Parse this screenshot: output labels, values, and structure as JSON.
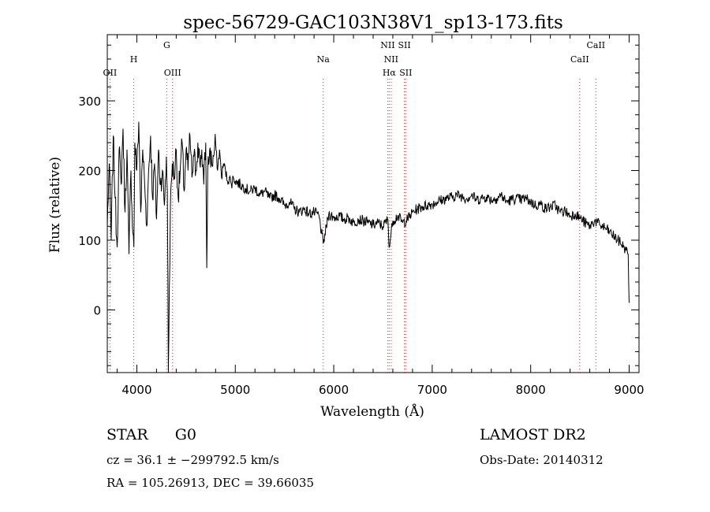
{
  "chart_data": {
    "type": "line",
    "title": "spec-56729-GAC103N38V1_sp13-173.fits",
    "xlabel": "Wavelength (Å)",
    "ylabel": "Flux (relative)",
    "xlim": [
      3700,
      9100
    ],
    "ylim": [
      -90,
      395
    ],
    "xticks": [
      4000,
      5000,
      6000,
      7000,
      8000,
      9000
    ],
    "yticks": [
      0,
      100,
      200,
      300
    ],
    "grid": false,
    "series": [
      {
        "x": [
          3700,
          3720,
          3740,
          3760,
          3780,
          3800,
          3820,
          3840,
          3860,
          3880,
          3900,
          3920,
          3940,
          3960,
          3970,
          3980,
          4000,
          4020,
          4040,
          4060,
          4080,
          4100,
          4120,
          4140,
          4160,
          4180,
          4200,
          4220,
          4240,
          4260,
          4280,
          4300,
          4310,
          4320,
          4340,
          4360,
          4380,
          4400,
          4420,
          4440,
          4460,
          4480,
          4500,
          4520,
          4540,
          4560,
          4580,
          4600,
          4620,
          4640,
          4660,
          4680,
          4700,
          4710,
          4720,
          4740,
          4760,
          4780,
          4800,
          4820,
          4840,
          4860,
          4880,
          4900,
          4920,
          4940,
          4960,
          4980,
          5000,
          5050,
          5100,
          5150,
          5200,
          5250,
          5300,
          5350,
          5400,
          5450,
          5500,
          5550,
          5600,
          5650,
          5700,
          5750,
          5800,
          5850,
          5893,
          5950,
          6000,
          6050,
          6100,
          6150,
          6200,
          6250,
          6300,
          6350,
          6400,
          6450,
          6500,
          6550,
          6563,
          6600,
          6650,
          6700,
          6750,
          6800,
          6850,
          6900,
          6950,
          7000,
          7050,
          7100,
          7150,
          7200,
          7250,
          7300,
          7350,
          7400,
          7450,
          7500,
          7550,
          7600,
          7650,
          7700,
          7750,
          7800,
          7850,
          7900,
          7950,
          8000,
          8050,
          8100,
          8150,
          8200,
          8250,
          8300,
          8350,
          8400,
          8450,
          8500,
          8550,
          8600,
          8650,
          8700,
          8750,
          8800,
          8850,
          8900,
          8950,
          8970,
          8990,
          9000
        ],
        "values": [
          120,
          210,
          100,
          250,
          160,
          90,
          230,
          180,
          260,
          140,
          230,
          80,
          200,
          110,
          90,
          240,
          200,
          270,
          140,
          230,
          180,
          120,
          200,
          250,
          160,
          210,
          130,
          230,
          180,
          200,
          150,
          220,
          170,
          -90,
          140,
          210,
          190,
          230,
          160,
          200,
          240,
          170,
          230,
          200,
          250,
          190,
          220,
          200,
          240,
          210,
          230,
          180,
          240,
          60,
          200,
          230,
          210,
          220,
          240,
          200,
          230,
          190,
          210,
          200,
          185,
          190,
          180,
          190,
          185,
          180,
          175,
          170,
          175,
          165,
          170,
          160,
          165,
          160,
          150,
          155,
          145,
          140,
          145,
          138,
          140,
          135,
          95,
          138,
          132,
          135,
          130,
          132,
          125,
          130,
          128,
          125,
          122,
          125,
          120,
          130,
          90,
          128,
          135,
          125,
          130,
          140,
          145,
          148,
          150,
          152,
          155,
          158,
          160,
          162,
          165,
          163,
          160,
          165,
          158,
          160,
          162,
          158,
          160,
          165,
          155,
          158,
          160,
          158,
          160,
          155,
          150,
          152,
          145,
          148,
          150,
          140,
          142,
          135,
          138,
          132,
          125,
          120,
          128,
          122,
          118,
          112,
          105,
          98,
          90,
          85,
          80,
          10
        ]
      }
    ],
    "lines": [
      {
        "name": "OII",
        "x": 3727,
        "row": 2
      },
      {
        "name": "H",
        "x": 3969,
        "row": 1
      },
      {
        "name": "G",
        "x": 4304,
        "row": 0
      },
      {
        "name": "OIII",
        "x": 4363,
        "row": 2
      },
      {
        "name": "Na",
        "x": 5893,
        "row": 1
      },
      {
        "name": "NII",
        "x": 6548,
        "row": 0
      },
      {
        "name": "NII",
        "x": 6583,
        "row": 1
      },
      {
        "name": "Hα",
        "x": 6563,
        "row": 2
      },
      {
        "name": "SII",
        "x": 6717,
        "row": 0
      },
      {
        "name": "SII",
        "x": 6731,
        "row": 2
      },
      {
        "name": "CaII",
        "x": 8498,
        "row": 1
      },
      {
        "name": "CaII",
        "x": 8662,
        "row": 0
      }
    ]
  },
  "info": {
    "class_label": "STAR",
    "subclass": "G0",
    "survey": "LAMOST DR2",
    "redshift_line": "cz = 36.1 ± −299792.5 km/s",
    "obs_date": "Obs-Date: 20140312",
    "coords": "RA = 105.26913, DEC =  39.66035"
  }
}
